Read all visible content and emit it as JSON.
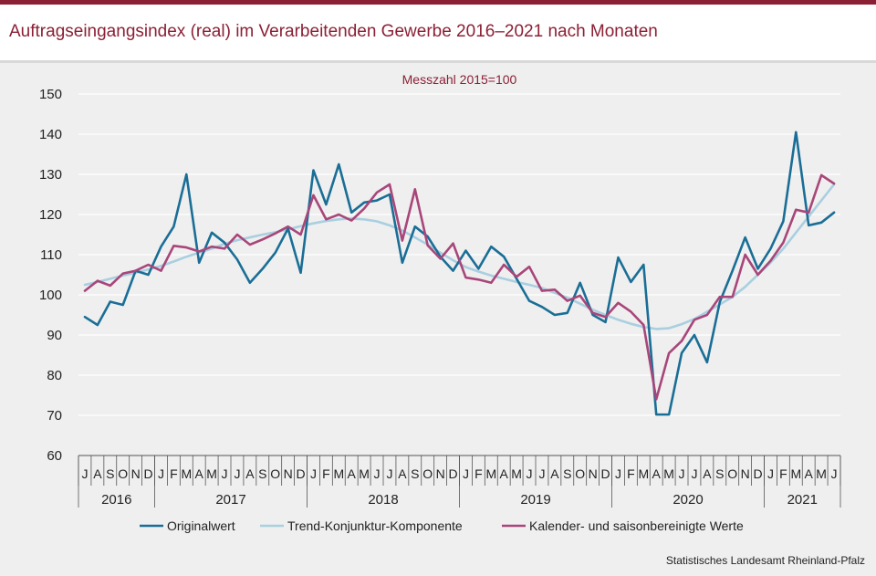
{
  "header": {
    "title": "Auftragseingangsindex (real) im Verarbeitenden Gewerbe 2016–2021 nach Monaten"
  },
  "footer": {
    "source": "Statistisches Landesamt  Rheinland-Pfalz"
  },
  "colors": {
    "brand": "#8b2035",
    "panel_bg": "#efefef",
    "original": "#1a6e96",
    "trend": "#a9cfe0",
    "adjusted": "#a8467a"
  },
  "chart_data": {
    "type": "line",
    "subtitle": "Messzahl  2015=100",
    "ylim": [
      60,
      150
    ],
    "yticks": [
      60,
      70,
      80,
      90,
      100,
      110,
      120,
      130,
      140,
      150
    ],
    "grid": true,
    "legend_position": "bottom",
    "categories": [
      "J",
      "A",
      "S",
      "O",
      "N",
      "D",
      "J",
      "F",
      "M",
      "A",
      "M",
      "J",
      "J",
      "A",
      "S",
      "O",
      "N",
      "D",
      "J",
      "F",
      "M",
      "A",
      "M",
      "J",
      "J",
      "A",
      "S",
      "O",
      "N",
      "D",
      "J",
      "F",
      "M",
      "A",
      "M",
      "J",
      "J",
      "A",
      "S",
      "O",
      "N",
      "D",
      "J",
      "F",
      "M",
      "A",
      "M",
      "J",
      "J",
      "A",
      "S",
      "O",
      "N",
      "D",
      "J",
      "F",
      "M",
      "A",
      "M",
      "J"
    ],
    "years": [
      {
        "label": "2016",
        "months": 6
      },
      {
        "label": "2017",
        "months": 12
      },
      {
        "label": "2018",
        "months": 12
      },
      {
        "label": "2019",
        "months": 12
      },
      {
        "label": "2020",
        "months": 12
      },
      {
        "label": "2021",
        "months": 6
      }
    ],
    "series": [
      {
        "name": "Originalwert",
        "color": "#1a6e96",
        "values": [
          94.5,
          92.5,
          98.3,
          97.5,
          106.0,
          105.0,
          112.0,
          117.0,
          130.0,
          108.0,
          115.5,
          113.0,
          108.8,
          103.0,
          106.5,
          110.5,
          116.5,
          105.5,
          131.0,
          122.5,
          132.5,
          120.5,
          123.0,
          123.5,
          125.0,
          108.0,
          117.0,
          114.5,
          109.5,
          106.0,
          111.0,
          106.5,
          112.0,
          109.5,
          104.0,
          98.5,
          97.0,
          95.0,
          95.5,
          103.0,
          95.0,
          93.2,
          109.3,
          103.2,
          107.5,
          70.2,
          70.2,
          85.5,
          90.0,
          83.2,
          98.2,
          106.0,
          114.3,
          106.5,
          111.5,
          118.3,
          140.5,
          117.3,
          118.0,
          120.5
        ]
      },
      {
        "name": "Trend-Konjunktur-Komponente",
        "color": "#a9cfe0",
        "values": [
          102.5,
          103.2,
          104.0,
          104.8,
          105.5,
          106.3,
          107.2,
          108.3,
          109.5,
          110.5,
          111.5,
          112.7,
          113.6,
          114.3,
          115.0,
          115.6,
          116.3,
          117.1,
          117.8,
          118.4,
          118.8,
          119.0,
          118.8,
          118.3,
          117.3,
          116.0,
          114.3,
          112.5,
          110.5,
          108.6,
          106.9,
          105.8,
          104.8,
          104.0,
          103.2,
          102.5,
          101.7,
          100.5,
          99.3,
          97.8,
          96.3,
          95.0,
          93.8,
          92.8,
          92.0,
          91.5,
          91.7,
          92.7,
          94.0,
          95.8,
          97.6,
          99.5,
          102.0,
          105.0,
          108.0,
          111.5,
          115.5,
          119.5,
          123.5,
          127.5
        ]
      },
      {
        "name": "Kalender- und saisonbereinigte Werte",
        "color": "#a8467a",
        "values": [
          101.0,
          103.5,
          102.3,
          105.3,
          106.0,
          107.5,
          106.0,
          112.2,
          111.8,
          110.8,
          112.0,
          111.5,
          115.0,
          112.5,
          113.8,
          115.3,
          117.0,
          115.0,
          124.8,
          118.8,
          120.0,
          118.5,
          121.5,
          125.5,
          127.5,
          113.5,
          126.3,
          112.3,
          109.0,
          112.8,
          104.3,
          103.8,
          103.0,
          107.5,
          104.5,
          107.0,
          101.0,
          101.3,
          98.5,
          99.8,
          95.5,
          94.5,
          98.0,
          95.8,
          92.5,
          74.0,
          85.5,
          88.5,
          93.8,
          95.0,
          99.5,
          99.5,
          110.0,
          105.0,
          108.5,
          113.0,
          121.2,
          120.5,
          129.8,
          127.7
        ]
      }
    ]
  }
}
